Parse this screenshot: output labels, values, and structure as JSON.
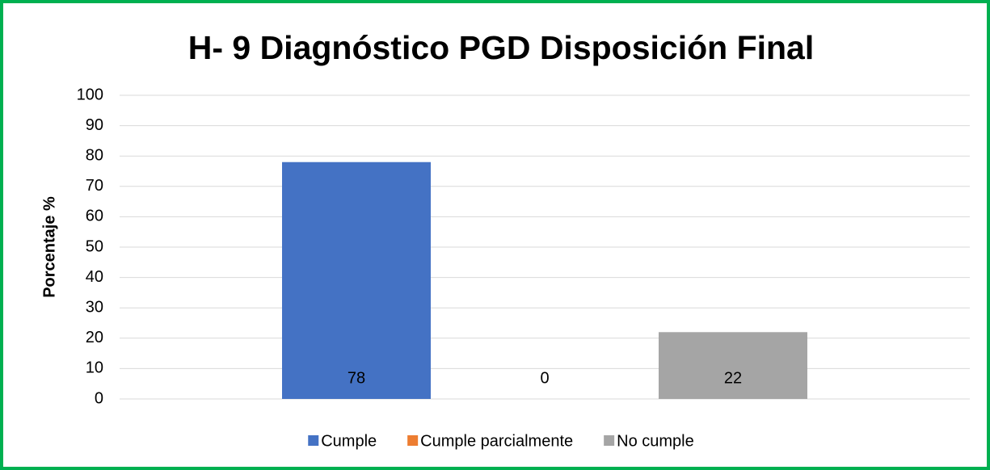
{
  "chart_data": {
    "type": "bar",
    "title": "H- 9 Diagnóstico PGD Disposición Final",
    "y_label": "Porcentaje %",
    "categories": [
      null
    ],
    "series": [
      {
        "name": "Cumple",
        "color": "#4472c4",
        "values": [
          78
        ]
      },
      {
        "name": "Cumple parcialmente",
        "color": "#ed7d31",
        "values": [
          0
        ]
      },
      {
        "name": "No cumple",
        "color": "#a5a5a5",
        "values": [
          22
        ]
      }
    ],
    "ylim": [
      0,
      100
    ],
    "yticks": [
      0,
      10,
      20,
      30,
      40,
      50,
      60,
      70,
      80,
      90,
      100
    ],
    "grid": true,
    "legend": "bottom"
  }
}
